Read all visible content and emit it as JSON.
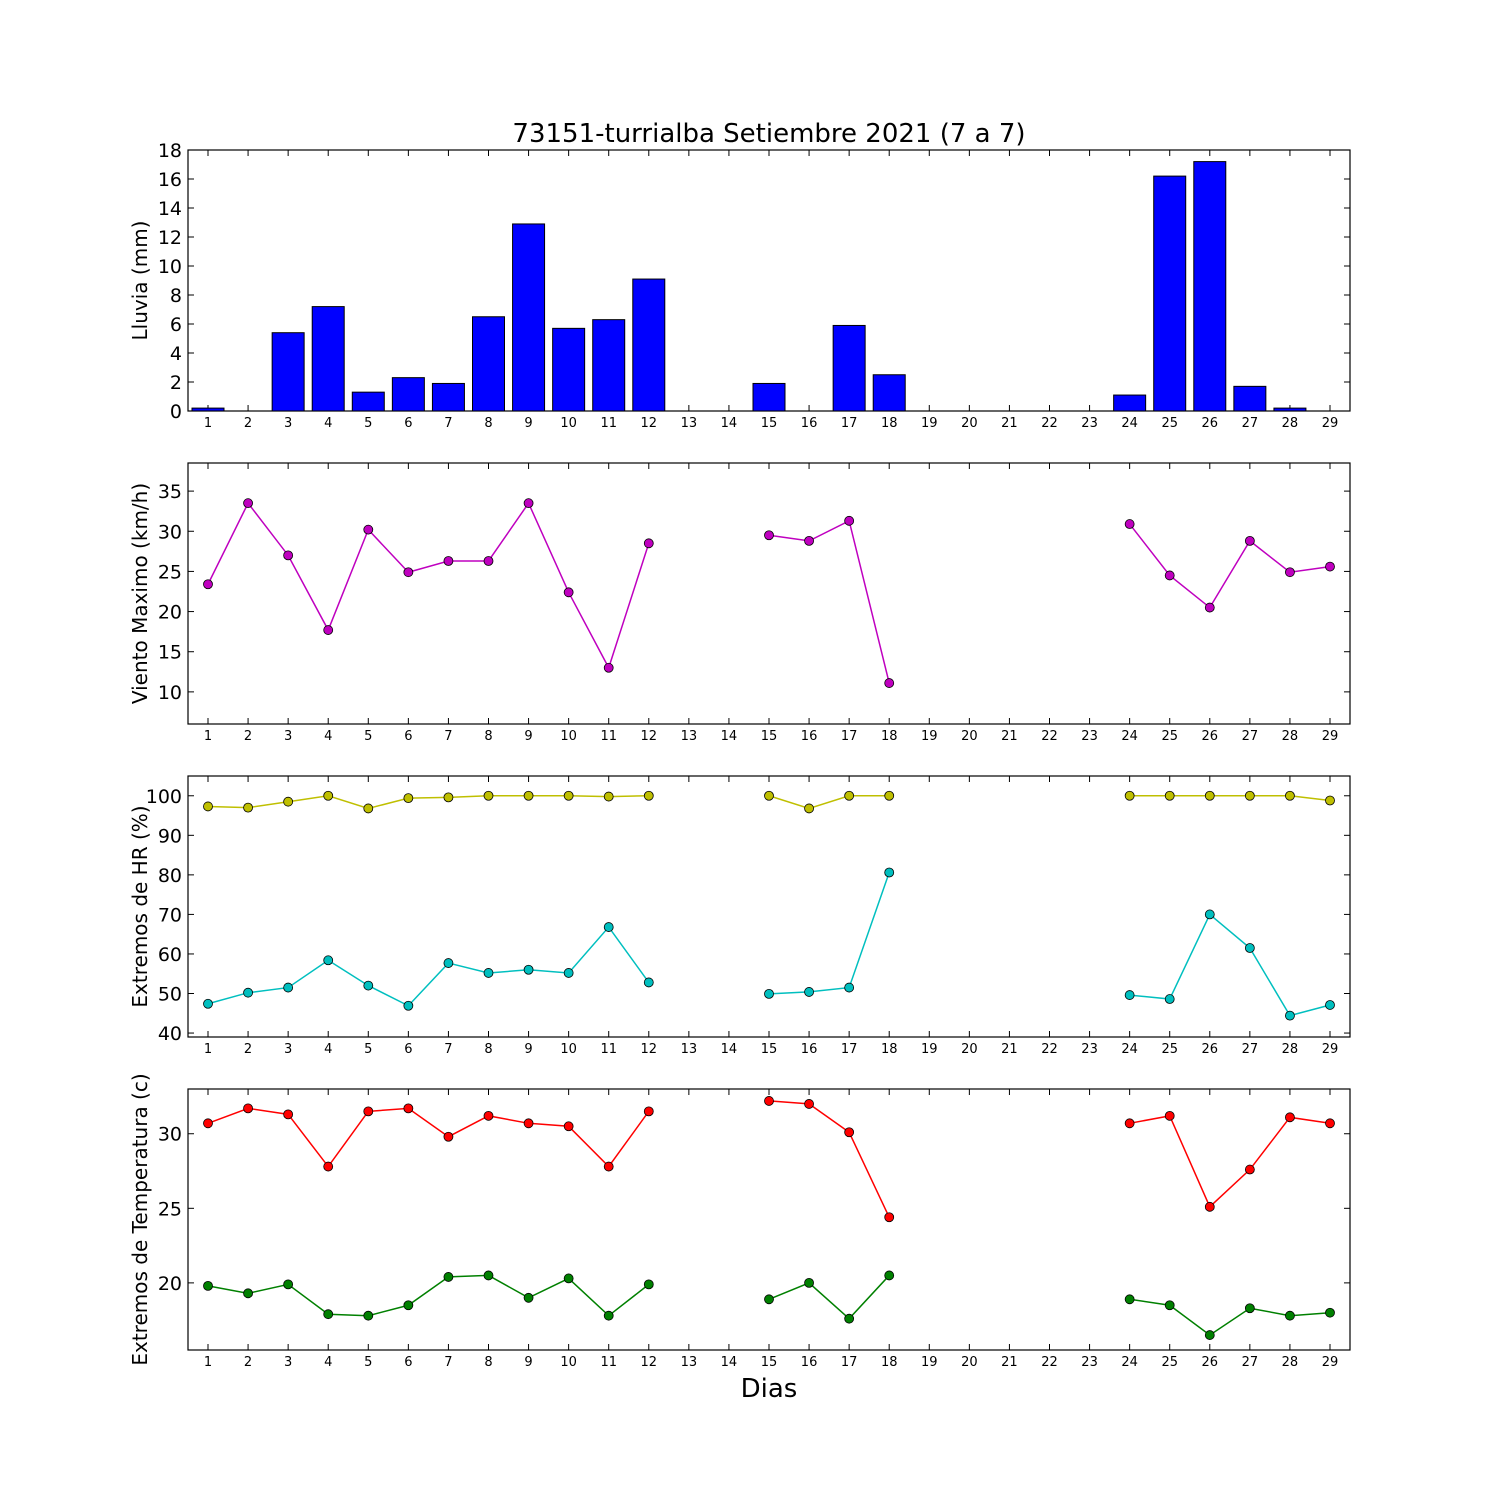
{
  "figure": {
    "title": "73151-turrialba Setiembre 2021  (7 a 7)",
    "xlabel": "Dias"
  },
  "chart_data": [
    {
      "type": "bar",
      "ylabel": "Lluvia (mm)",
      "categories": [
        "1",
        "2",
        "3",
        "4",
        "5",
        "6",
        "7",
        "8",
        "9",
        "10",
        "11",
        "12",
        "13",
        "14",
        "15",
        "16",
        "17",
        "18",
        "19",
        "20",
        "21",
        "22",
        "23",
        "24",
        "25",
        "26",
        "27",
        "28",
        "29"
      ],
      "values": [
        0.2,
        0,
        5.4,
        7.2,
        1.3,
        2.3,
        1.9,
        6.5,
        12.9,
        5.7,
        6.3,
        9.1,
        0,
        0,
        1.9,
        0,
        5.9,
        2.5,
        0,
        0,
        0,
        0,
        0,
        1.1,
        16.2,
        17.2,
        1.7,
        0.2,
        0
      ],
      "yticks": [
        0,
        2,
        4,
        6,
        8,
        10,
        12,
        14,
        16,
        18
      ],
      "ylim": [
        0,
        18
      ],
      "colors": {
        "bar": "#0000ff"
      }
    },
    {
      "type": "line",
      "ylabel": "Viento Maximo (km/h)",
      "categories": [
        "1",
        "2",
        "3",
        "4",
        "5",
        "6",
        "7",
        "8",
        "9",
        "10",
        "11",
        "12",
        "13",
        "14",
        "15",
        "16",
        "17",
        "18",
        "19",
        "20",
        "21",
        "22",
        "23",
        "24",
        "25",
        "26",
        "27",
        "28",
        "29"
      ],
      "series": [
        {
          "values": [
            23.4,
            33.5,
            27.0,
            17.7,
            30.2,
            24.9,
            26.3,
            26.3,
            33.5,
            22.4,
            13.0,
            28.5,
            null,
            null,
            29.5,
            28.8,
            31.3,
            11.1,
            null,
            null,
            null,
            null,
            null,
            30.9,
            24.5,
            20.5,
            28.8,
            24.9,
            25.6
          ],
          "color": "#bf00bf"
        }
      ],
      "yticks": [
        10,
        15,
        20,
        25,
        30,
        35
      ],
      "ylim": [
        6,
        38.5
      ]
    },
    {
      "type": "line",
      "ylabel": "Extremos de HR (%)",
      "categories": [
        "1",
        "2",
        "3",
        "4",
        "5",
        "6",
        "7",
        "8",
        "9",
        "10",
        "11",
        "12",
        "13",
        "14",
        "15",
        "16",
        "17",
        "18",
        "19",
        "20",
        "21",
        "22",
        "23",
        "24",
        "25",
        "26",
        "27",
        "28",
        "29"
      ],
      "series": [
        {
          "values": [
            97.3,
            97.0,
            98.5,
            100,
            96.8,
            99.4,
            99.6,
            100,
            100,
            100,
            99.8,
            100,
            null,
            null,
            100,
            96.8,
            100,
            100,
            null,
            null,
            null,
            null,
            null,
            100,
            100,
            100,
            100,
            100,
            98.8
          ],
          "color": "#bfbf00"
        },
        {
          "values": [
            47.4,
            50.2,
            51.5,
            58.4,
            52.0,
            46.9,
            57.7,
            55.2,
            56.0,
            55.2,
            66.8,
            52.8,
            null,
            null,
            49.9,
            50.4,
            51.5,
            80.6,
            null,
            null,
            null,
            null,
            null,
            49.6,
            48.6,
            70.0,
            61.5,
            44.4,
            47.1
          ],
          "color": "#00bfbf"
        }
      ],
      "yticks": [
        40,
        50,
        60,
        70,
        80,
        90,
        100
      ],
      "ylim": [
        39,
        105
      ]
    },
    {
      "type": "line",
      "ylabel": "Extremos de Temperatura (c)",
      "categories": [
        "1",
        "2",
        "3",
        "4",
        "5",
        "6",
        "7",
        "8",
        "9",
        "10",
        "11",
        "12",
        "13",
        "14",
        "15",
        "16",
        "17",
        "18",
        "19",
        "20",
        "21",
        "22",
        "23",
        "24",
        "25",
        "26",
        "27",
        "28",
        "29"
      ],
      "series": [
        {
          "values": [
            30.7,
            31.7,
            31.3,
            27.8,
            31.5,
            31.7,
            29.8,
            31.2,
            30.7,
            30.5,
            27.8,
            31.5,
            null,
            null,
            32.2,
            32.0,
            30.1,
            24.4,
            null,
            null,
            null,
            null,
            null,
            30.7,
            31.2,
            25.1,
            27.6,
            31.1,
            30.7
          ],
          "color": "#ff0000"
        },
        {
          "values": [
            19.8,
            19.3,
            19.9,
            17.9,
            17.8,
            18.5,
            20.4,
            20.5,
            19.0,
            20.3,
            17.8,
            19.9,
            null,
            null,
            18.9,
            20.0,
            17.6,
            20.5,
            null,
            null,
            null,
            null,
            null,
            18.9,
            18.5,
            16.5,
            18.3,
            17.8,
            18.0
          ],
          "color": "#008000"
        }
      ],
      "yticks": [
        20,
        25,
        30
      ],
      "ylim": [
        15.5,
        33
      ]
    }
  ]
}
